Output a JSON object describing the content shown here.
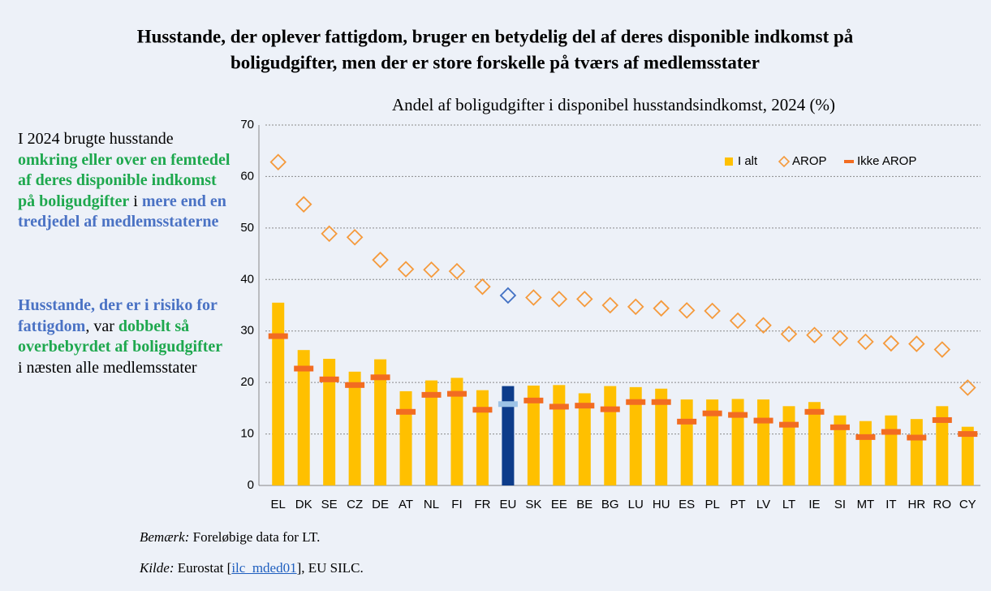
{
  "chart_data": {
    "type": "bar",
    "title": [
      "Husstande, der oplever fattigdom, bruger en betydelig del af deres disponible indkomst på",
      "boligudgifter, men der er store forskelle på tværs af medlemsstater"
    ],
    "subtitle": "Andel af boligudgifter i disponibel husstandsindkomst, 2024 (%)",
    "categories": [
      "EL",
      "DK",
      "SE",
      "CZ",
      "DE",
      "AT",
      "NL",
      "FI",
      "FR",
      "EU",
      "SK",
      "EE",
      "BE",
      "BG",
      "LU",
      "HU",
      "ES",
      "PL",
      "PT",
      "LV",
      "LT",
      "IE",
      "SI",
      "MT",
      "IT",
      "HR",
      "RO",
      "CY"
    ],
    "highlight": "EU",
    "series": [
      {
        "name": "I alt",
        "mark": "bar",
        "color": "#ffc000",
        "highlight_color": "#0d3c8a",
        "values": [
          35.5,
          26.3,
          24.6,
          22.1,
          24.5,
          18.3,
          20.4,
          20.9,
          18.5,
          19.3,
          19.4,
          19.5,
          17.9,
          19.3,
          19.1,
          18.8,
          16.7,
          16.7,
          16.8,
          16.7,
          15.4,
          16.2,
          13.6,
          12.5,
          13.6,
          12.9,
          15.4,
          11.4
        ]
      },
      {
        "name": "AROP",
        "mark": "diamond",
        "color": "#f59a3c",
        "highlight_color": "#4472c4",
        "values": [
          62.8,
          54.6,
          48.9,
          48.2,
          43.8,
          42.0,
          41.9,
          41.6,
          38.6,
          36.9,
          36.5,
          36.2,
          36.2,
          35.0,
          34.7,
          34.4,
          34.0,
          33.9,
          32.0,
          31.1,
          29.4,
          29.2,
          28.6,
          27.9,
          27.6,
          27.5,
          26.4,
          19.0
        ]
      },
      {
        "name": "Ikke AROP",
        "mark": "dash",
        "color": "#f26c21",
        "highlight_color": "#9dc3e6",
        "values": [
          29.0,
          22.7,
          20.6,
          19.5,
          21.0,
          14.3,
          17.6,
          17.8,
          14.7,
          15.8,
          16.5,
          15.3,
          15.5,
          14.8,
          16.2,
          16.2,
          12.4,
          14.0,
          13.7,
          12.6,
          11.8,
          14.3,
          11.3,
          9.4,
          10.4,
          9.3,
          12.7,
          10.0
        ]
      }
    ],
    "ylim": [
      0,
      70
    ],
    "yticks": [
      0,
      10,
      20,
      30,
      40,
      50,
      60,
      70
    ],
    "grid": true,
    "legend": "upper right"
  },
  "side_text": [
    [
      {
        "text": "I 2024 brugte husstande ",
        "style": "plain"
      },
      {
        "text": "omkring eller over en femtedel af deres disponible indkomst på boligudgifter",
        "style": "green"
      },
      {
        "text": " i ",
        "style": "plain"
      },
      {
        "text": "mere end en tredjedel af medlemsstaterne",
        "style": "blue"
      }
    ],
    [
      {
        "text": "Husstande, der er i risiko for fattigdom",
        "style": "blue"
      },
      {
        "text": ", var ",
        "style": "plain"
      },
      {
        "text": "dobbelt så overbebyrdet af boligudgifter",
        "style": "green"
      },
      {
        "text": " i næsten alle medlemsstater",
        "style": "plain"
      }
    ]
  ],
  "notes": [
    [
      {
        "text": "Bemærk:",
        "style": "em"
      },
      {
        "text": " Foreløbige data for LT.",
        "style": "plain"
      }
    ],
    [
      {
        "text": "Kilde:",
        "style": "em"
      },
      {
        "text": " Eurostat [",
        "style": "plain"
      },
      {
        "text": "ilc_mded01",
        "style": "link"
      },
      {
        "text": "], EU SILC.",
        "style": "plain"
      }
    ]
  ]
}
